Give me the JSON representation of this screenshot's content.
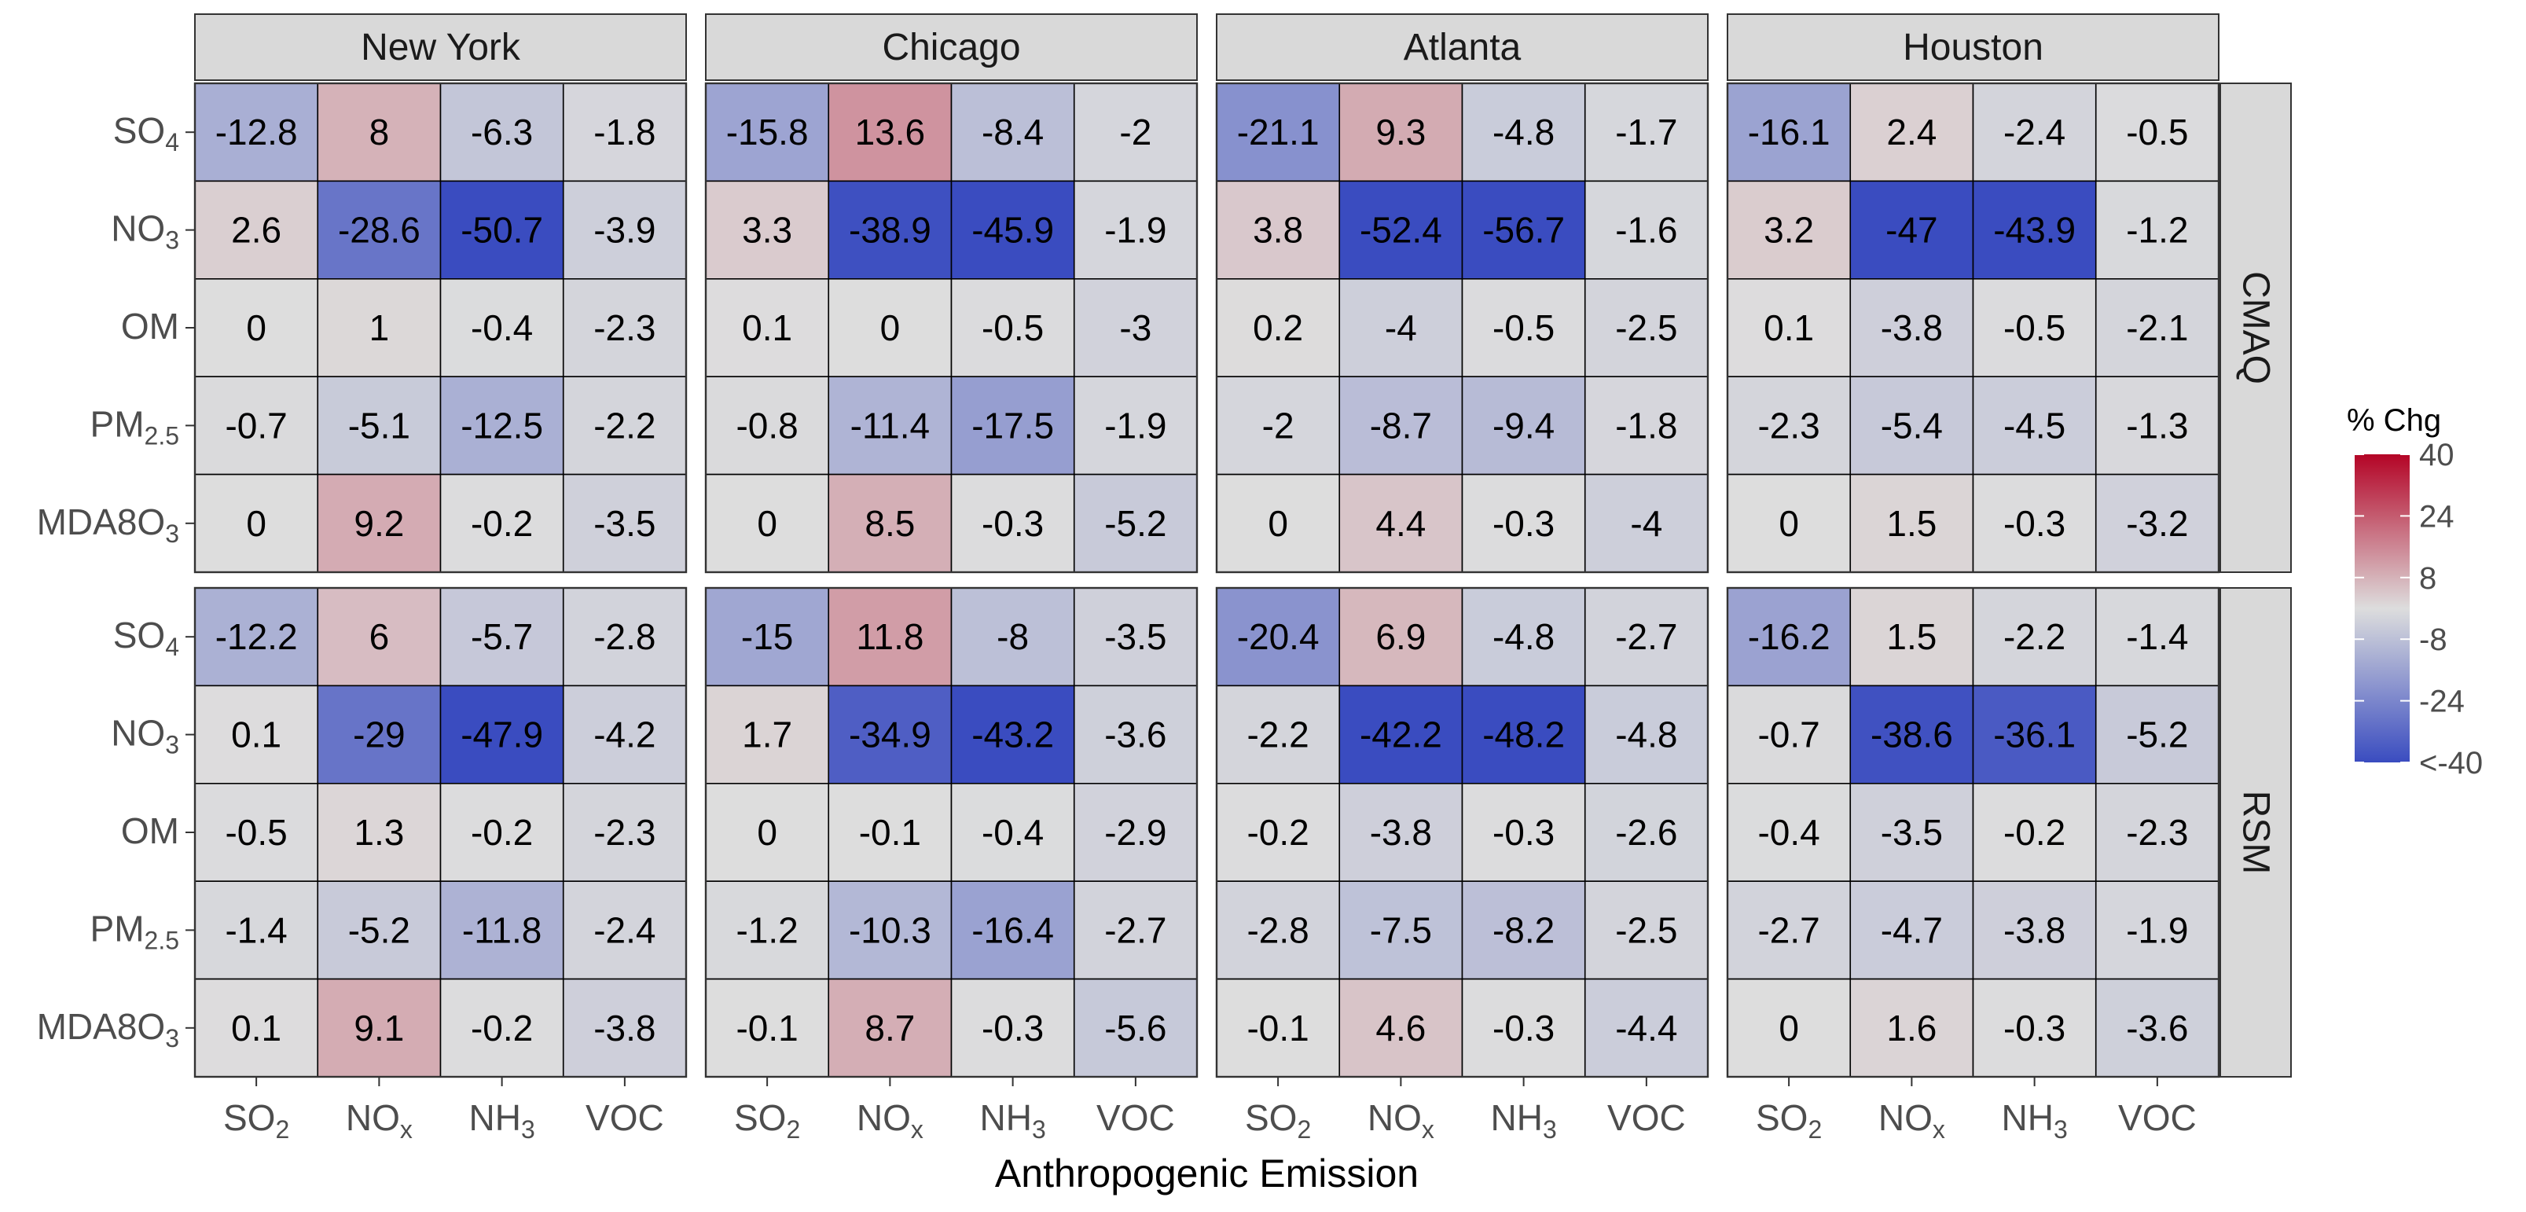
{
  "chart_data": {
    "type": "heatmap",
    "xlabel": "Anthropogenic Emission",
    "x_categories": [
      {
        "base": "SO",
        "sub": "2"
      },
      {
        "base": "NO",
        "sub": "x"
      },
      {
        "base": "NH",
        "sub": "3"
      },
      {
        "base": "VOC",
        "sub": ""
      }
    ],
    "y_categories": [
      {
        "base": "SO",
        "sub": "4"
      },
      {
        "base": "NO",
        "sub": "3"
      },
      {
        "base": "OM",
        "sub": ""
      },
      {
        "base": "PM",
        "sub": "2.5"
      },
      {
        "base": "MDA8O",
        "sub": "3"
      }
    ],
    "columns_facet": [
      "New York",
      "Chicago",
      "Atlanta",
      "Houston"
    ],
    "rows_facet": [
      "CMAQ",
      "RSM"
    ],
    "values": {
      "CMAQ": {
        "New York": [
          [
            -12.8,
            8,
            -6.3,
            -1.8
          ],
          [
            2.6,
            -28.6,
            -50.7,
            -3.9
          ],
          [
            0,
            1,
            -0.4,
            -2.3
          ],
          [
            -0.7,
            -5.1,
            -12.5,
            -2.2
          ],
          [
            0,
            9.2,
            -0.2,
            -3.5
          ]
        ],
        "Chicago": [
          [
            -15.8,
            13.6,
            -8.4,
            -2
          ],
          [
            3.3,
            -38.9,
            -45.9,
            -1.9
          ],
          [
            0.1,
            0,
            -0.5,
            -3
          ],
          [
            -0.8,
            -11.4,
            -17.5,
            -1.9
          ],
          [
            0,
            8.5,
            -0.3,
            -5.2
          ]
        ],
        "Atlanta": [
          [
            -21.1,
            9.3,
            -4.8,
            -1.7
          ],
          [
            3.8,
            -52.4,
            -56.7,
            -1.6
          ],
          [
            0.2,
            -4,
            -0.5,
            -2.5
          ],
          [
            -2,
            -8.7,
            -9.4,
            -1.8
          ],
          [
            0,
            4.4,
            -0.3,
            -4
          ]
        ],
        "Houston": [
          [
            -16.1,
            2.4,
            -2.4,
            -0.5
          ],
          [
            3.2,
            -47,
            -43.9,
            -1.2
          ],
          [
            0.1,
            -3.8,
            -0.5,
            -2.1
          ],
          [
            -2.3,
            -5.4,
            -4.5,
            -1.3
          ],
          [
            0,
            1.5,
            -0.3,
            -3.2
          ]
        ]
      },
      "RSM": {
        "New York": [
          [
            -12.2,
            6,
            -5.7,
            -2.8
          ],
          [
            0.1,
            -29,
            -47.9,
            -4.2
          ],
          [
            -0.5,
            1.3,
            -0.2,
            -2.3
          ],
          [
            -1.4,
            -5.2,
            -11.8,
            -2.4
          ],
          [
            0.1,
            9.1,
            -0.2,
            -3.8
          ]
        ],
        "Chicago": [
          [
            -15,
            11.8,
            -8,
            -3.5
          ],
          [
            1.7,
            -34.9,
            -43.2,
            -3.6
          ],
          [
            0,
            -0.1,
            -0.4,
            -2.9
          ],
          [
            -1.2,
            -10.3,
            -16.4,
            -2.7
          ],
          [
            -0.1,
            8.7,
            -0.3,
            -5.6
          ]
        ],
        "Atlanta": [
          [
            -20.4,
            6.9,
            -4.8,
            -2.7
          ],
          [
            -2.2,
            -42.2,
            -48.2,
            -4.8
          ],
          [
            -0.2,
            -3.8,
            -0.3,
            -2.6
          ],
          [
            -2.8,
            -7.5,
            -8.2,
            -2.5
          ],
          [
            -0.1,
            4.6,
            -0.3,
            -4.4
          ]
        ],
        "Houston": [
          [
            -16.2,
            1.5,
            -2.2,
            -1.4
          ],
          [
            -0.7,
            -38.6,
            -36.1,
            -5.2
          ],
          [
            -0.4,
            -3.5,
            -0.2,
            -2.3
          ],
          [
            -2.7,
            -4.7,
            -3.8,
            -1.9
          ],
          [
            0,
            1.6,
            -0.3,
            -3.6
          ]
        ]
      }
    },
    "legend": {
      "title": "% Chg",
      "ticks": [
        40,
        24,
        8,
        -8,
        -24,
        -40
      ],
      "tick_labels": [
        "40",
        "24",
        "8",
        "-8",
        "-24",
        "<-40"
      ],
      "range": [
        -40,
        40
      ],
      "colors": {
        "low": "#3a4cc0",
        "mid": "#dddddd",
        "high": "#b40426"
      }
    },
    "colors": {
      "strip_fill": "#d9d9d9",
      "panel_border": "#333333",
      "cell_grid": "#000000",
      "axis_ticks": "#333333"
    }
  }
}
